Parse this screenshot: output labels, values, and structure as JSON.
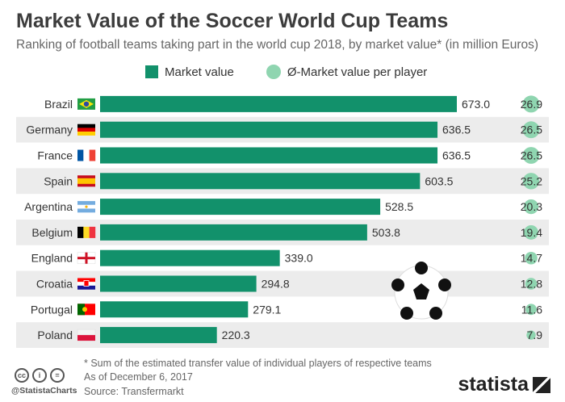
{
  "chart_data": {
    "type": "bar",
    "title": "Market Value of the Soccer World Cup Teams",
    "subtitle": "Ranking of football teams taking part in the world cup 2018, by market value* (in million Euros)",
    "categories": [
      "Brazil",
      "Germany",
      "France",
      "Spain",
      "Argentina",
      "Belgium",
      "England",
      "Croatia",
      "Portugal",
      "Poland"
    ],
    "series": [
      {
        "name": "Market value",
        "values": [
          673.0,
          636.5,
          636.5,
          603.5,
          528.5,
          503.8,
          339.0,
          294.8,
          279.1,
          220.3
        ],
        "color": "#12916b"
      },
      {
        "name": "Ø-Market value per player",
        "values": [
          26.9,
          26.5,
          26.5,
          25.2,
          20.3,
          19.4,
          14.7,
          12.8,
          11.6,
          7.9
        ],
        "color": "#8fd5b0"
      }
    ],
    "legend_placement": "top",
    "grid": false
  },
  "footer": {
    "note": "* Sum of the estimated transfer value of individual players of respective teams",
    "date": "As of December 6, 2017",
    "source": "Source: Transfermarkt",
    "handle": "@StatistaCharts",
    "logo": "statista"
  },
  "icons": [
    "flag-icons",
    "soccer-ball-icon",
    "cc-license-icons"
  ]
}
